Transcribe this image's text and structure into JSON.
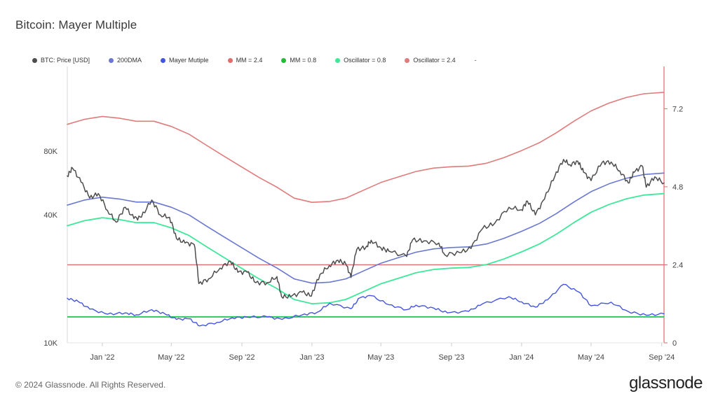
{
  "page": {
    "title": "Bitcoin: Mayer Multiple",
    "copyright": "© 2024 Glassnode. All Rights Reserved.",
    "brand": "glassnode"
  },
  "colors": {
    "price": "#4d4d4d",
    "dma200": "#6a78d1",
    "mayer": "#4455dd",
    "mm24": "#e06c6c",
    "mm08": "#2ec760",
    "osc08": "#3ee89a",
    "osc24": "#e07b7b",
    "axis_right": "#e06c6c"
  },
  "legend": [
    {
      "label": "BTC: Price [USD]",
      "color": "#4d4d4d"
    },
    {
      "label": "200DMA",
      "color": "#6a78d1"
    },
    {
      "label": "Mayer Mutiple",
      "color": "#4455dd"
    },
    {
      "label": "MM = 2.4",
      "color": "#e06c6c"
    },
    {
      "label": "MM = 0.8",
      "color": "#22bb33"
    },
    {
      "label": "Oscillator = 0.8",
      "color": "#3ee89a"
    },
    {
      "label": "Oscillator = 2.4",
      "color": "#e07b7b"
    }
  ],
  "legend_extra": "-",
  "chart_data": {
    "type": "line",
    "title": "Bitcoin: Mayer Multiple",
    "x_range": [
      "2021-11-01",
      "2024-09-05"
    ],
    "x_ticks": [
      {
        "date": "2022-01-01",
        "label": "Jan '22"
      },
      {
        "date": "2022-05-01",
        "label": "May '22"
      },
      {
        "date": "2022-09-01",
        "label": "Sep '22"
      },
      {
        "date": "2023-01-01",
        "label": "Jan '23"
      },
      {
        "date": "2023-05-01",
        "label": "May '23"
      },
      {
        "date": "2023-09-01",
        "label": "Sep '23"
      },
      {
        "date": "2024-01-01",
        "label": "Jan '24"
      },
      {
        "date": "2024-05-01",
        "label": "May '24"
      },
      {
        "date": "2024-09-01",
        "label": "Sep '24"
      }
    ],
    "y_left": {
      "scale": "log",
      "range": [
        10000,
        200000
      ],
      "ticks": [
        {
          "value": 10000,
          "label": "10K"
        },
        {
          "value": 40000,
          "label": "40K"
        },
        {
          "value": 80000,
          "label": "80K"
        }
      ]
    },
    "y_right": {
      "scale": "linear",
      "range": [
        0,
        8.5
      ],
      "ticks": [
        {
          "value": 0,
          "label": "0"
        },
        {
          "value": 2.4,
          "label": "2.4"
        },
        {
          "value": 4.8,
          "label": "4.8"
        },
        {
          "value": 7.2,
          "label": "7.2"
        }
      ]
    },
    "series": [
      {
        "name": "BTC: Price [USD]",
        "axis": "left",
        "points": [
          [
            "2021-11-01",
            61000
          ],
          [
            "2021-11-10",
            66500
          ],
          [
            "2021-11-25",
            57000
          ],
          [
            "2021-12-10",
            48000
          ],
          [
            "2021-12-25",
            50500
          ],
          [
            "2022-01-10",
            42000
          ],
          [
            "2022-01-25",
            37000
          ],
          [
            "2022-02-10",
            43500
          ],
          [
            "2022-02-25",
            38500
          ],
          [
            "2022-03-10",
            39000
          ],
          [
            "2022-03-28",
            47000
          ],
          [
            "2022-04-12",
            40000
          ],
          [
            "2022-04-28",
            39000
          ],
          [
            "2022-05-10",
            31000
          ],
          [
            "2022-05-25",
            29500
          ],
          [
            "2022-06-10",
            29000
          ],
          [
            "2022-06-18",
            19000
          ],
          [
            "2022-07-05",
            20000
          ],
          [
            "2022-07-25",
            22500
          ],
          [
            "2022-08-12",
            24200
          ],
          [
            "2022-08-25",
            21500
          ],
          [
            "2022-09-10",
            21500
          ],
          [
            "2022-09-25",
            19200
          ],
          [
            "2022-10-15",
            19200
          ],
          [
            "2022-11-01",
            20500
          ],
          [
            "2022-11-09",
            16500
          ],
          [
            "2022-11-25",
            16500
          ],
          [
            "2022-12-15",
            17300
          ],
          [
            "2022-12-31",
            16600
          ],
          [
            "2023-01-15",
            21000
          ],
          [
            "2023-01-31",
            23100
          ],
          [
            "2023-02-15",
            24500
          ],
          [
            "2023-03-01",
            23500
          ],
          [
            "2023-03-10",
            20300
          ],
          [
            "2023-03-20",
            27500
          ],
          [
            "2023-04-05",
            28200
          ],
          [
            "2023-04-14",
            30400
          ],
          [
            "2023-05-01",
            28000
          ],
          [
            "2023-05-15",
            27000
          ],
          [
            "2023-06-15",
            25500
          ],
          [
            "2023-06-25",
            30500
          ],
          [
            "2023-07-15",
            30200
          ],
          [
            "2023-08-10",
            29500
          ],
          [
            "2023-08-20",
            26000
          ],
          [
            "2023-09-15",
            26600
          ],
          [
            "2023-10-05",
            27800
          ],
          [
            "2023-10-25",
            34500
          ],
          [
            "2023-11-15",
            36500
          ],
          [
            "2023-12-10",
            43500
          ],
          [
            "2024-01-01",
            42300
          ],
          [
            "2024-01-11",
            46500
          ],
          [
            "2024-01-25",
            40000
          ],
          [
            "2024-02-10",
            47500
          ],
          [
            "2024-02-28",
            61000
          ],
          [
            "2024-03-14",
            73000
          ],
          [
            "2024-03-25",
            69000
          ],
          [
            "2024-04-08",
            71500
          ],
          [
            "2024-04-18",
            63500
          ],
          [
            "2024-05-01",
            58000
          ],
          [
            "2024-05-20",
            70500
          ],
          [
            "2024-06-05",
            71000
          ],
          [
            "2024-06-20",
            64500
          ],
          [
            "2024-07-05",
            56500
          ],
          [
            "2024-07-15",
            63500
          ],
          [
            "2024-07-29",
            68000
          ],
          [
            "2024-08-05",
            54000
          ],
          [
            "2024-08-20",
            60500
          ],
          [
            "2024-09-05",
            56500
          ]
        ]
      },
      {
        "name": "200DMA",
        "axis": "left",
        "points": [
          [
            "2021-11-01",
            44500
          ],
          [
            "2021-12-01",
            47000
          ],
          [
            "2022-01-01",
            48500
          ],
          [
            "2022-02-01",
            47500
          ],
          [
            "2022-03-01",
            46000
          ],
          [
            "2022-04-01",
            46000
          ],
          [
            "2022-05-01",
            43500
          ],
          [
            "2022-06-01",
            40000
          ],
          [
            "2022-07-01",
            35500
          ],
          [
            "2022-08-01",
            31500
          ],
          [
            "2022-09-01",
            28000
          ],
          [
            "2022-10-01",
            25000
          ],
          [
            "2022-11-01",
            22500
          ],
          [
            "2022-12-01",
            20000
          ],
          [
            "2023-01-01",
            19100
          ],
          [
            "2023-02-01",
            19300
          ],
          [
            "2023-03-01",
            20000
          ],
          [
            "2023-04-01",
            21800
          ],
          [
            "2023-05-01",
            23700
          ],
          [
            "2023-06-01",
            25200
          ],
          [
            "2023-07-01",
            26700
          ],
          [
            "2023-08-01",
            27700
          ],
          [
            "2023-09-01",
            28100
          ],
          [
            "2023-10-01",
            28300
          ],
          [
            "2023-11-01",
            29200
          ],
          [
            "2023-12-01",
            31000
          ],
          [
            "2024-01-01",
            33500
          ],
          [
            "2024-02-01",
            36500
          ],
          [
            "2024-03-01",
            40500
          ],
          [
            "2024-04-01",
            46000
          ],
          [
            "2024-05-01",
            51500
          ],
          [
            "2024-06-01",
            56000
          ],
          [
            "2024-07-01",
            59500
          ],
          [
            "2024-08-01",
            62000
          ],
          [
            "2024-09-05",
            63000
          ]
        ]
      },
      {
        "name": "Mayer Mutiple",
        "axis": "right",
        "points": [
          [
            "2021-11-01",
            1.37
          ],
          [
            "2021-11-20",
            1.27
          ],
          [
            "2021-12-10",
            1.04
          ],
          [
            "2022-01-10",
            0.88
          ],
          [
            "2022-02-10",
            0.92
          ],
          [
            "2022-03-01",
            0.86
          ],
          [
            "2022-03-28",
            1.02
          ],
          [
            "2022-04-20",
            0.89
          ],
          [
            "2022-05-10",
            0.72
          ],
          [
            "2022-06-01",
            0.74
          ],
          [
            "2022-06-20",
            0.52
          ],
          [
            "2022-07-20",
            0.63
          ],
          [
            "2022-08-15",
            0.77
          ],
          [
            "2022-09-10",
            0.79
          ],
          [
            "2022-10-15",
            0.8
          ],
          [
            "2022-11-10",
            0.72
          ],
          [
            "2022-12-15",
            0.86
          ],
          [
            "2023-01-10",
            0.94
          ],
          [
            "2023-02-01",
            1.22
          ],
          [
            "2023-03-10",
            1.05
          ],
          [
            "2023-03-25",
            1.38
          ],
          [
            "2023-04-14",
            1.45
          ],
          [
            "2023-05-15",
            1.17
          ],
          [
            "2023-06-15",
            1.02
          ],
          [
            "2023-07-01",
            1.16
          ],
          [
            "2023-08-01",
            1.07
          ],
          [
            "2023-08-25",
            0.92
          ],
          [
            "2023-10-01",
            0.97
          ],
          [
            "2023-10-25",
            1.2
          ],
          [
            "2023-12-10",
            1.42
          ],
          [
            "2024-01-01",
            1.26
          ],
          [
            "2024-01-25",
            1.1
          ],
          [
            "2024-02-15",
            1.32
          ],
          [
            "2024-03-14",
            1.8
          ],
          [
            "2024-04-10",
            1.56
          ],
          [
            "2024-05-01",
            1.14
          ],
          [
            "2024-06-05",
            1.25
          ],
          [
            "2024-07-05",
            0.96
          ],
          [
            "2024-08-05",
            0.85
          ],
          [
            "2024-09-05",
            0.89
          ]
        ]
      },
      {
        "name": "Oscillator = 2.4",
        "axis": "left",
        "points": [
          [
            "2021-11-01",
            106800
          ],
          [
            "2021-12-01",
            112800
          ],
          [
            "2022-01-01",
            116400
          ],
          [
            "2022-02-01",
            114000
          ],
          [
            "2022-03-01",
            110400
          ],
          [
            "2022-04-01",
            110400
          ],
          [
            "2022-05-01",
            104400
          ],
          [
            "2022-06-01",
            96000
          ],
          [
            "2022-07-01",
            85200
          ],
          [
            "2022-08-01",
            75600
          ],
          [
            "2022-09-01",
            67200
          ],
          [
            "2022-10-01",
            60000
          ],
          [
            "2022-11-01",
            54000
          ],
          [
            "2022-12-01",
            48000
          ],
          [
            "2023-01-01",
            45840
          ],
          [
            "2023-02-01",
            46320
          ],
          [
            "2023-03-01",
            48000
          ],
          [
            "2023-04-01",
            52320
          ],
          [
            "2023-05-01",
            56880
          ],
          [
            "2023-06-01",
            60480
          ],
          [
            "2023-07-01",
            64080
          ],
          [
            "2023-08-01",
            66480
          ],
          [
            "2023-09-01",
            67440
          ],
          [
            "2023-10-01",
            67920
          ],
          [
            "2023-11-01",
            70080
          ],
          [
            "2023-12-01",
            74400
          ],
          [
            "2024-01-01",
            80400
          ],
          [
            "2024-02-01",
            87600
          ],
          [
            "2024-03-01",
            97200
          ],
          [
            "2024-04-01",
            110400
          ],
          [
            "2024-05-01",
            123600
          ],
          [
            "2024-06-01",
            134400
          ],
          [
            "2024-07-01",
            142800
          ],
          [
            "2024-08-01",
            148800
          ],
          [
            "2024-09-05",
            151200
          ]
        ]
      },
      {
        "name": "Oscillator = 0.8",
        "axis": "left",
        "points": [
          [
            "2021-11-01",
            35600
          ],
          [
            "2021-12-01",
            37600
          ],
          [
            "2022-01-01",
            38800
          ],
          [
            "2022-02-01",
            38000
          ],
          [
            "2022-03-01",
            36800
          ],
          [
            "2022-04-01",
            36800
          ],
          [
            "2022-05-01",
            34800
          ],
          [
            "2022-06-01",
            32000
          ],
          [
            "2022-07-01",
            28400
          ],
          [
            "2022-08-01",
            25200
          ],
          [
            "2022-09-01",
            22400
          ],
          [
            "2022-10-01",
            20000
          ],
          [
            "2022-11-01",
            18000
          ],
          [
            "2022-12-01",
            16000
          ],
          [
            "2023-01-01",
            15280
          ],
          [
            "2023-02-01",
            15440
          ],
          [
            "2023-03-01",
            16000
          ],
          [
            "2023-04-01",
            17440
          ],
          [
            "2023-05-01",
            18960
          ],
          [
            "2023-06-01",
            20160
          ],
          [
            "2023-07-01",
            21360
          ],
          [
            "2023-08-01",
            22160
          ],
          [
            "2023-09-01",
            22480
          ],
          [
            "2023-10-01",
            22640
          ],
          [
            "2023-11-01",
            23360
          ],
          [
            "2023-12-01",
            24800
          ],
          [
            "2024-01-01",
            26800
          ],
          [
            "2024-02-01",
            29200
          ],
          [
            "2024-03-01",
            32400
          ],
          [
            "2024-04-01",
            36800
          ],
          [
            "2024-05-01",
            41200
          ],
          [
            "2024-06-01",
            44800
          ],
          [
            "2024-07-01",
            47600
          ],
          [
            "2024-08-01",
            49600
          ],
          [
            "2024-09-05",
            50400
          ]
        ]
      }
    ],
    "hlines": [
      {
        "name": "MM = 2.4",
        "axis": "right",
        "value": 2.4
      },
      {
        "name": "MM = 0.8",
        "axis": "right",
        "value": 0.8
      }
    ]
  }
}
